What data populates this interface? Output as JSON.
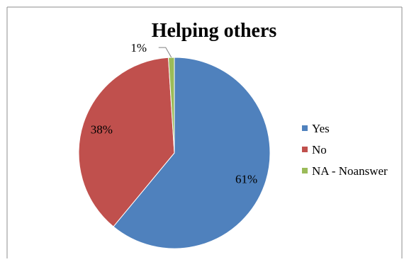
{
  "chart_data": {
    "type": "pie",
    "title": "Helping others",
    "categories": [
      "Yes",
      "No",
      "NA - Noanswer"
    ],
    "values": [
      61,
      38,
      1
    ],
    "data_labels": [
      "61%",
      "38%",
      "1%"
    ],
    "colors": [
      "#4f81bd",
      "#c0504d",
      "#9bbb59"
    ],
    "start_angle": "top (12 o'clock), clockwise",
    "legend_position": "right"
  }
}
